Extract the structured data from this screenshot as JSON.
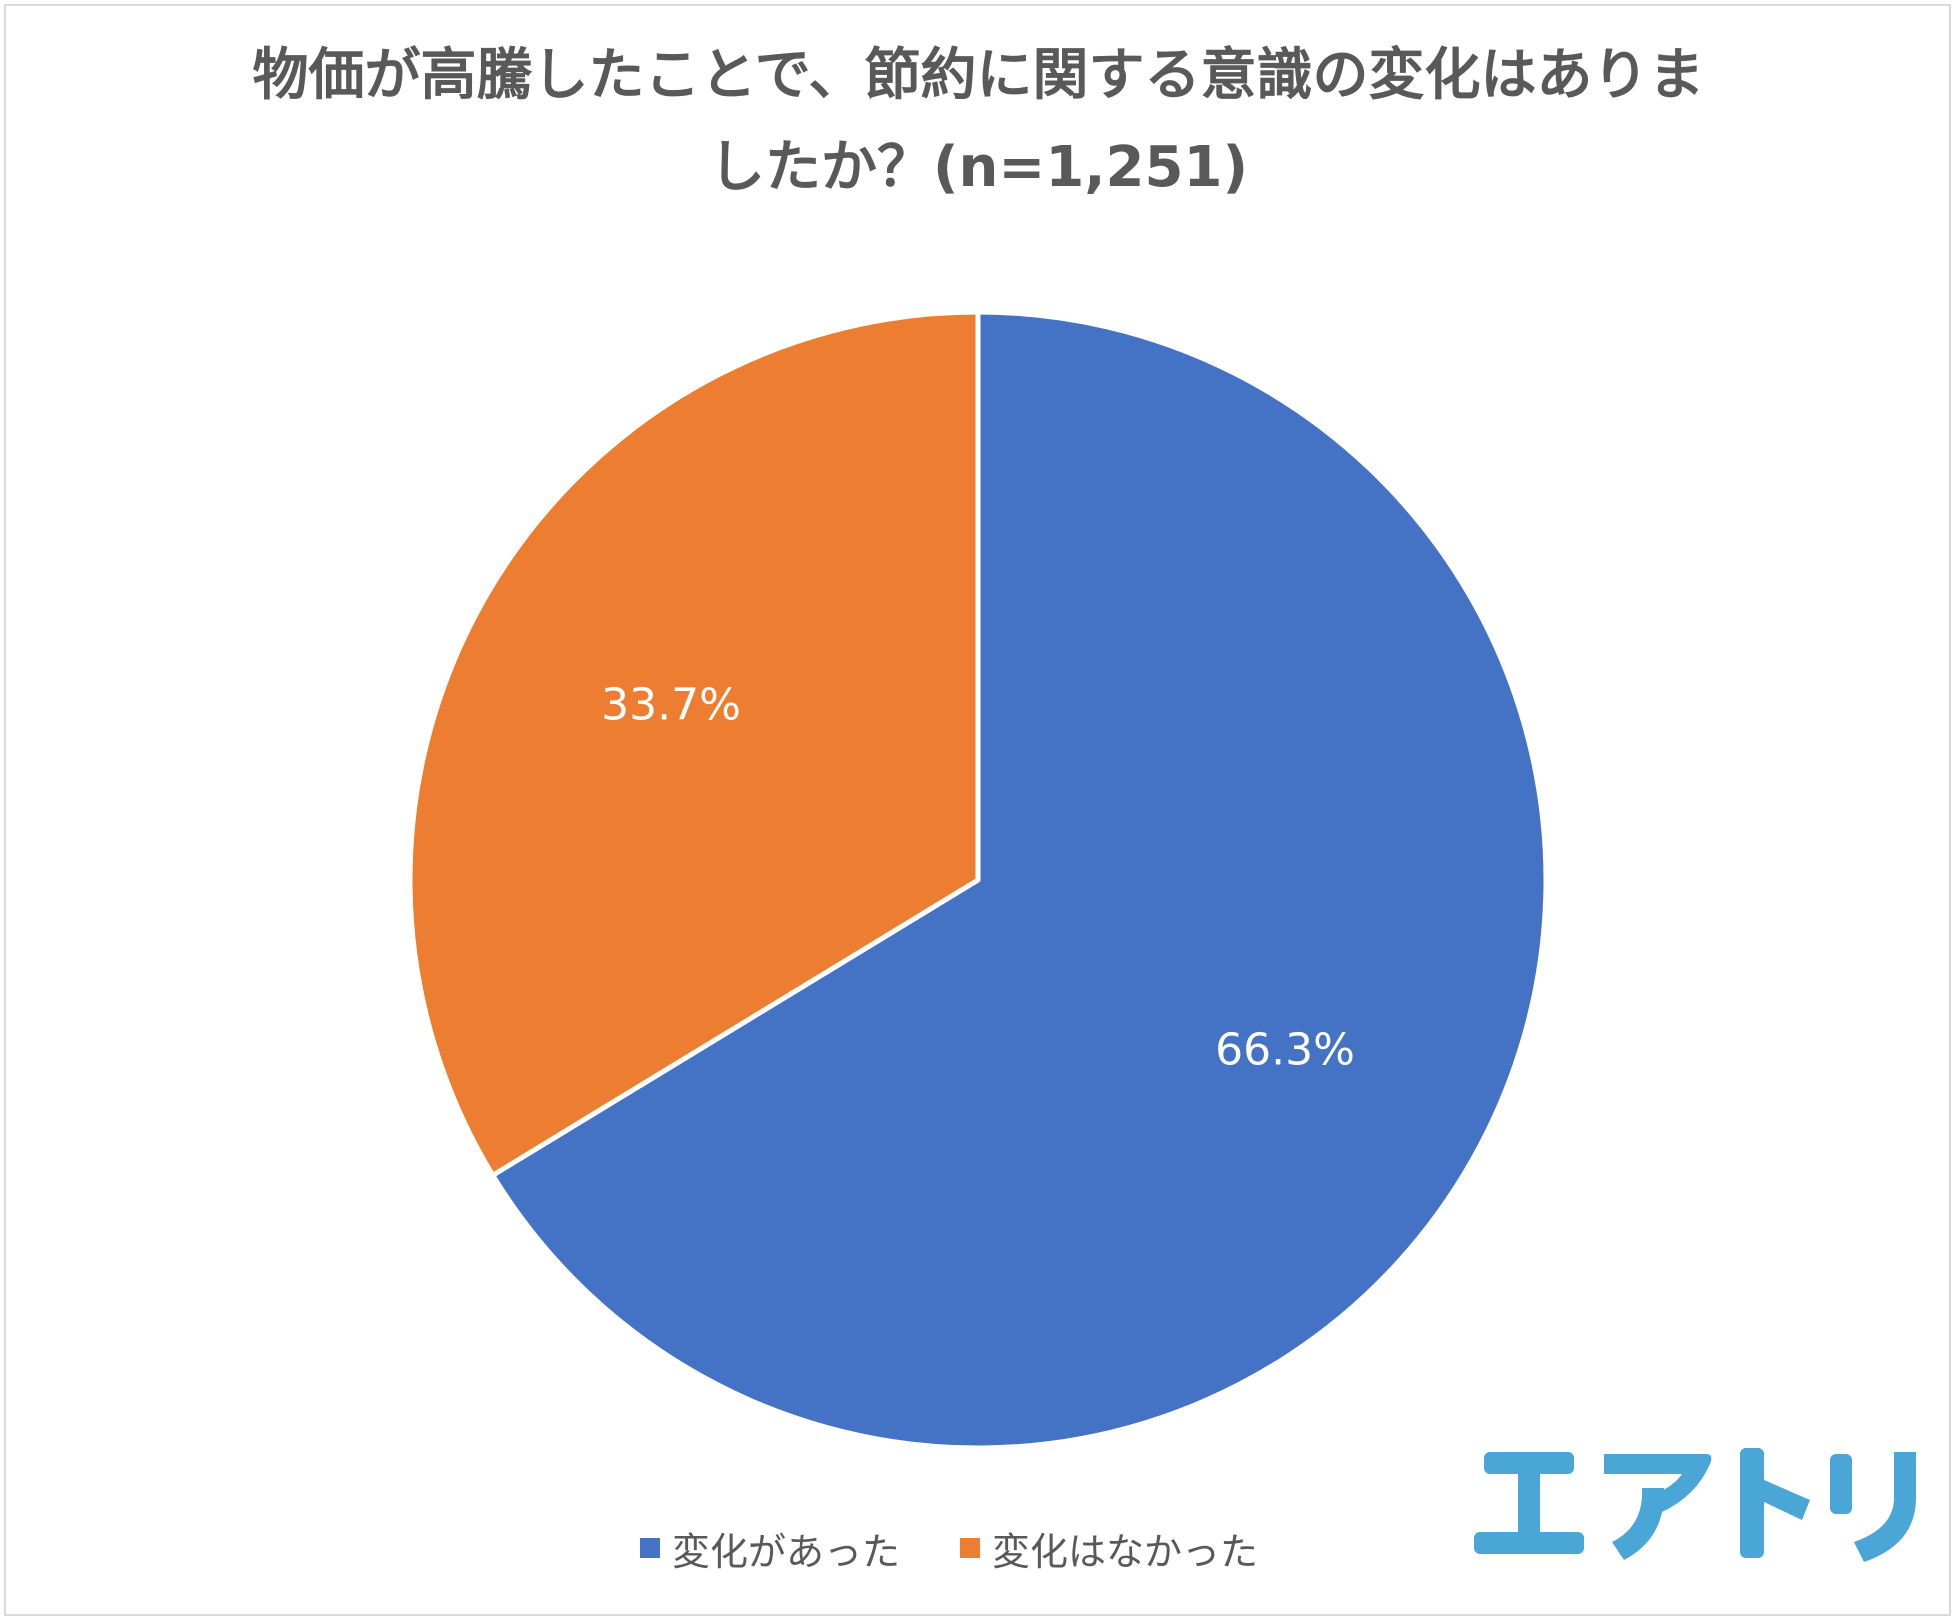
{
  "chart_data": {
    "type": "pie",
    "title": "物価が高騰したことで、節約に関する意識の変化はありましたか？(n=1,251)",
    "title_lines": [
      "物価が高騰したことで、節約に関する意識の変化はありま",
      "したか？(n=1,251)"
    ],
    "slices": [
      {
        "label": "変化があった",
        "value": 66.3,
        "value_label": "66.3%",
        "color": "#4472c4"
      },
      {
        "label": "変化はなかった",
        "value": 33.7,
        "value_label": "33.7%",
        "color": "#ed7d31"
      }
    ],
    "legend_position": "bottom",
    "start_angle_deg": 0,
    "direction": "clockwise"
  },
  "logo": {
    "text": "エアトリ",
    "color": "#4aa6d6"
  }
}
